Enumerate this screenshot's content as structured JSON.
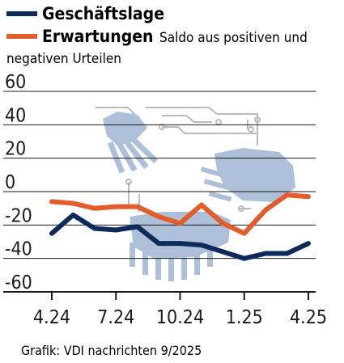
{
  "legend": {
    "series1_label": "Geschäftslage",
    "series2_label": "Erwartungen",
    "note": "Saldo aus positiven und negativen Urteilen"
  },
  "source": "Grafik: VDI nachrichten 9/2025",
  "colors": {
    "series1": "#0d2b5a",
    "series2": "#e25c2c",
    "grid": "#1a1a1a",
    "illustration": "#a9bcd8",
    "circuit": "#b8b8b8"
  },
  "chart_data": {
    "type": "line",
    "title": "",
    "xlabel": "",
    "ylabel": "",
    "ylim": [
      -60,
      60
    ],
    "yticks": [
      60,
      40,
      20,
      0,
      -20,
      -40,
      -60
    ],
    "ytick_labels": [
      "60",
      "40",
      "20",
      "0",
      "-20",
      "-40",
      "-60"
    ],
    "xtick_labels": [
      "4.24",
      "7.24",
      "10.24",
      "1.25",
      "4.25"
    ],
    "xtick_positions": [
      0,
      3,
      6,
      9,
      12
    ],
    "x": [
      "4.24",
      "5.24",
      "6.24",
      "7.24",
      "8.24",
      "9.24",
      "10.24",
      "11.24",
      "12.24",
      "1.25",
      "2.25",
      "3.25",
      "4.25"
    ],
    "grid": true,
    "series": [
      {
        "name": "Geschäftslage",
        "values": [
          -25,
          -14,
          -22,
          -23,
          -21,
          -31,
          -31,
          -32,
          -36,
          -40,
          -37,
          -37,
          -31
        ]
      },
      {
        "name": "Erwartungen",
        "values": [
          -6,
          -7,
          -10,
          -9,
          -9,
          -15,
          -19,
          -8,
          -19,
          -25,
          -11,
          -2,
          -3
        ]
      }
    ]
  }
}
